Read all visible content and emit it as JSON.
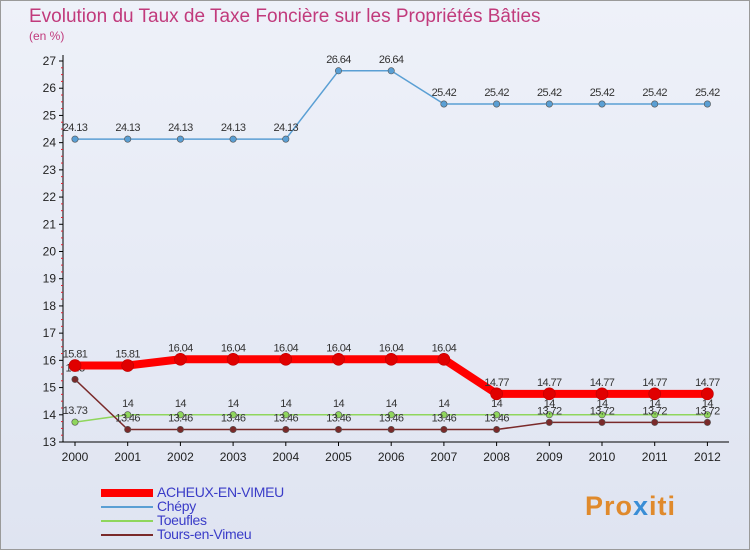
{
  "title": "Evolution du Taux de Taxe Foncière sur les Propriétés Bâties",
  "unit": "(en %)",
  "logo": {
    "parts": [
      "Pro",
      "x",
      "iti"
    ],
    "colors": [
      "#e08a2c",
      "#3a8ed6",
      "#e08a2c"
    ]
  },
  "chart_data": {
    "type": "line",
    "title": "Evolution du Taux de Taxe Foncière sur les Propriétés Bâties",
    "ylabel": "(en %)",
    "ylim": [
      13,
      27
    ],
    "yticks": [
      13,
      14,
      15,
      16,
      17,
      18,
      19,
      20,
      21,
      22,
      23,
      24,
      25,
      26,
      27
    ],
    "x": [
      "2000",
      "2001",
      "2002",
      "2003",
      "2004",
      "2005",
      "2006",
      "2007",
      "2008",
      "2009",
      "2010",
      "2011",
      "2012"
    ],
    "series": [
      {
        "name": "Chépy",
        "color": "#5a9fd4",
        "width": 1.5,
        "values": [
          24.13,
          24.13,
          24.13,
          24.13,
          24.13,
          26.64,
          26.64,
          25.42,
          25.42,
          25.42,
          25.42,
          25.42,
          25.42
        ],
        "labels": [
          "24.13",
          "24.13",
          "24.13",
          "24.13",
          "24.13",
          "26.64",
          "26.64",
          "25.42",
          "25.42",
          "25.42",
          "25.42",
          "25.42",
          "25.42"
        ]
      },
      {
        "name": "Toeufles",
        "color": "#8fd65c",
        "width": 1.5,
        "values": [
          13.73,
          14,
          14,
          14,
          14,
          14,
          14,
          14,
          14,
          14,
          14,
          14,
          14
        ],
        "labels": [
          "13.73",
          "14",
          "14",
          "14",
          "14",
          "14",
          "14",
          "14",
          "14",
          "14",
          "14",
          "14",
          "14"
        ]
      },
      {
        "name": "Tours-en-Vimeu",
        "color": "#7a2a2a",
        "width": 1.5,
        "values": [
          15.3,
          13.46,
          13.46,
          13.46,
          13.46,
          13.46,
          13.46,
          13.46,
          13.46,
          13.72,
          13.72,
          13.72,
          13.72
        ],
        "labels": [
          "15.3",
          "13.46",
          "13.46",
          "13.46",
          "13.46",
          "13.46",
          "13.46",
          "13.46",
          "13.46",
          "13.72",
          "13.72",
          "13.72",
          "13.72"
        ]
      },
      {
        "name": "ACHEUX-EN-VIMEU",
        "color": "#ff0000",
        "width": 8,
        "values": [
          15.81,
          15.81,
          16.04,
          16.04,
          16.04,
          16.04,
          16.04,
          16.04,
          14.77,
          14.77,
          14.77,
          14.77,
          14.77
        ],
        "labels": [
          "15.81",
          "15.81",
          "16.04",
          "16.04",
          "16.04",
          "16.04",
          "16.04",
          "16.04",
          "14.77",
          "14.77",
          "14.77",
          "14.77",
          "14.77"
        ]
      }
    ],
    "legend": [
      "ACHEUX-EN-VIMEU",
      "Chépy",
      "Toeufles",
      "Tours-en-Vimeu"
    ],
    "legend_position": "bottom-left"
  }
}
